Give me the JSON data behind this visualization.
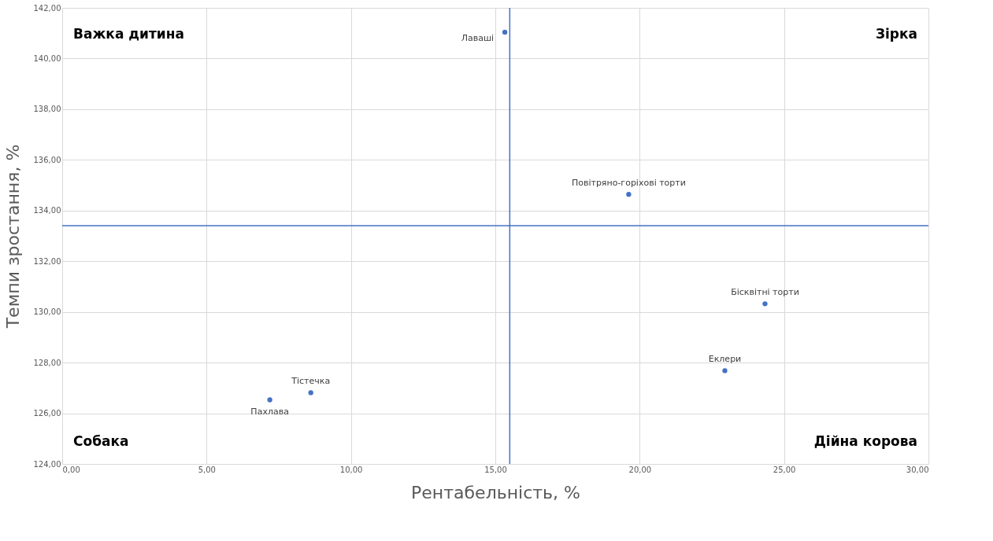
{
  "chart_data": {
    "type": "scatter",
    "xlabel": "Рентабельність, %",
    "ylabel": "Темпи зростання, %",
    "x": [
      15.33,
      19.62,
      24.34,
      22.95,
      8.61,
      7.19
    ],
    "series": [
      {
        "color": "#4472c4",
        "values": [
          141.04,
          134.64,
          130.32,
          127.68,
          126.81,
          126.53
        ]
      }
    ],
    "xlim": [
      0,
      30
    ],
    "xticks": [
      {
        "value": 0,
        "label": "0,00"
      },
      {
        "value": 5,
        "label": "5,00"
      },
      {
        "value": 10,
        "label": "10,00"
      },
      {
        "value": 15,
        "label": "15,00"
      },
      {
        "value": 20,
        "label": "20,00"
      },
      {
        "value": 25,
        "label": "25,00"
      },
      {
        "value": 30,
        "label": "30,00"
      }
    ],
    "ylim": [
      124,
      142
    ],
    "yticks": [
      {
        "value": 124,
        "label": "124,00"
      },
      {
        "value": 126,
        "label": "126,00"
      },
      {
        "value": 128,
        "label": "128,00"
      },
      {
        "value": 130,
        "label": "130,00"
      },
      {
        "value": 132,
        "label": "132,00"
      },
      {
        "value": 134,
        "label": "134,00"
      },
      {
        "value": 136,
        "label": "136,00"
      },
      {
        "value": 138,
        "label": "138,00"
      },
      {
        "value": 140,
        "label": "140,00"
      },
      {
        "value": 142,
        "label": "142,00"
      }
    ],
    "ref_lines": [
      {
        "axis": "x",
        "value": 15.5,
        "color": "#4472c4"
      },
      {
        "axis": "y",
        "value": 133.4,
        "color": "#4472c4"
      }
    ],
    "annotations": [
      {
        "text": "Лаваші",
        "x": 15.33,
        "y": 141.04
      },
      {
        "text": "Повітряно-горіхові торти",
        "x": 19.62,
        "y": 134.64
      },
      {
        "text": "Бісквітні торти",
        "x": 24.34,
        "y": 130.32
      },
      {
        "text": "Еклери",
        "x": 22.95,
        "y": 127.68
      },
      {
        "text": "Тістечка",
        "x": 8.61,
        "y": 126.81
      },
      {
        "text": "Пахлава",
        "x": 7.19,
        "y": 126.53
      },
      "Важка дитина",
      "Зірка",
      "Собака",
      "Дійна корова"
    ],
    "grid": true,
    "marker": "circle"
  }
}
